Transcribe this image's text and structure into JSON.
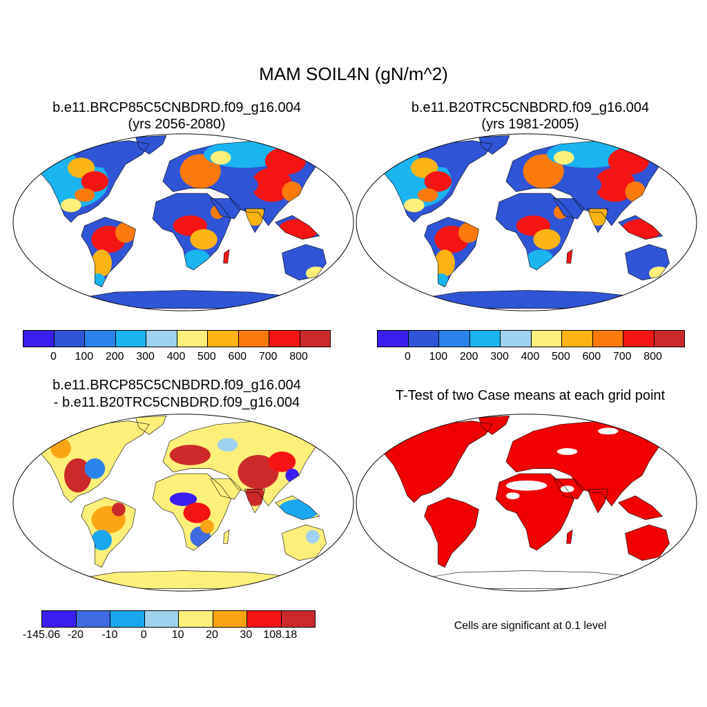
{
  "title": "MAM SOIL4N (gN/m^2)",
  "panels": [
    {
      "title_line1": "b.e11.BRCP85C5CNBDRD.f09_g16.004",
      "title_line2": "(yrs 2056-2080)"
    },
    {
      "title_line1": "b.e11.B20TRC5CNBDRD.f09_g16.004",
      "title_line2": "(yrs 1981-2005)"
    },
    {
      "title_line1": "b.e11.BRCP85C5CNBDRD.f09_g16.004",
      "title_line2": "- b.e11.B20TRC5CNBDRD.f09_g16.004"
    },
    {
      "title_line1": "T-Test of two Case means at each grid point",
      "note": "Cells are significant at 0.1 level"
    }
  ],
  "colorbars": {
    "absolute": {
      "labels": [
        "0",
        "100",
        "200",
        "300",
        "400",
        "500",
        "600",
        "700",
        "800"
      ],
      "colors": [
        "#3a1ef0",
        "#2f55d6",
        "#2a83ea",
        "#1ab4f0",
        "#9fd2ef",
        "#fdf07a",
        "#fcb316",
        "#fb7a0c",
        "#f41414",
        "#cc2a2a"
      ]
    },
    "difference": {
      "labels": [
        "-145.06",
        "-20",
        "-10",
        "0",
        "10",
        "20",
        "30",
        "108.18"
      ],
      "colors": [
        "#3a1ef0",
        "#3f6be0",
        "#1aa7ef",
        "#9fd2ef",
        "#fdf07a",
        "#fca514",
        "#f41414",
        "#cc2a2a"
      ]
    }
  },
  "map_colors": {
    "ocean": "#ffffff",
    "significant": "#f00000",
    "antarctica_abs": "#2f55d6",
    "antarctica_diff": "#fdf07a"
  }
}
